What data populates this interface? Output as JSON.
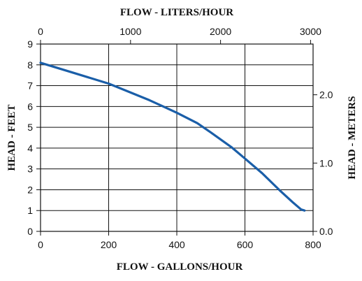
{
  "chart_data": {
    "type": "line",
    "x_top_label": "FLOW - LITERS/HOUR",
    "x_bottom_label": "FLOW - GALLONS/HOUR",
    "y_left_label": "HEAD - FEET",
    "y_right_label": "HEAD - METERS",
    "x_bottom_ticks": [
      "0",
      "200",
      "400",
      "600",
      "800"
    ],
    "x_top_ticks": [
      "0",
      "1000",
      "2000",
      "3000"
    ],
    "y_left_ticks": [
      "0",
      "1",
      "2",
      "3",
      "4",
      "5",
      "6",
      "7",
      "8",
      "9"
    ],
    "y_right_ticks": [
      "0.0",
      "1.0",
      "2.0"
    ],
    "xlim": [
      0,
      800
    ],
    "ylim": [
      0,
      9
    ],
    "x_top_lim_liters_per_hour": [
      0,
      3028
    ],
    "y_right_lim_meters": [
      0,
      2.743
    ],
    "grid": true,
    "series_color": "#1a5ea8",
    "series": [
      {
        "x": [
          0,
          100,
          200,
          260,
          320,
          360,
          400,
          460,
          500,
          560,
          600,
          650,
          700,
          740,
          765,
          775
        ],
        "y": [
          8.1,
          7.6,
          7.1,
          6.7,
          6.3,
          6.0,
          5.7,
          5.2,
          4.75,
          4.05,
          3.5,
          2.8,
          2.0,
          1.4,
          1.05,
          1.0
        ]
      }
    ]
  }
}
